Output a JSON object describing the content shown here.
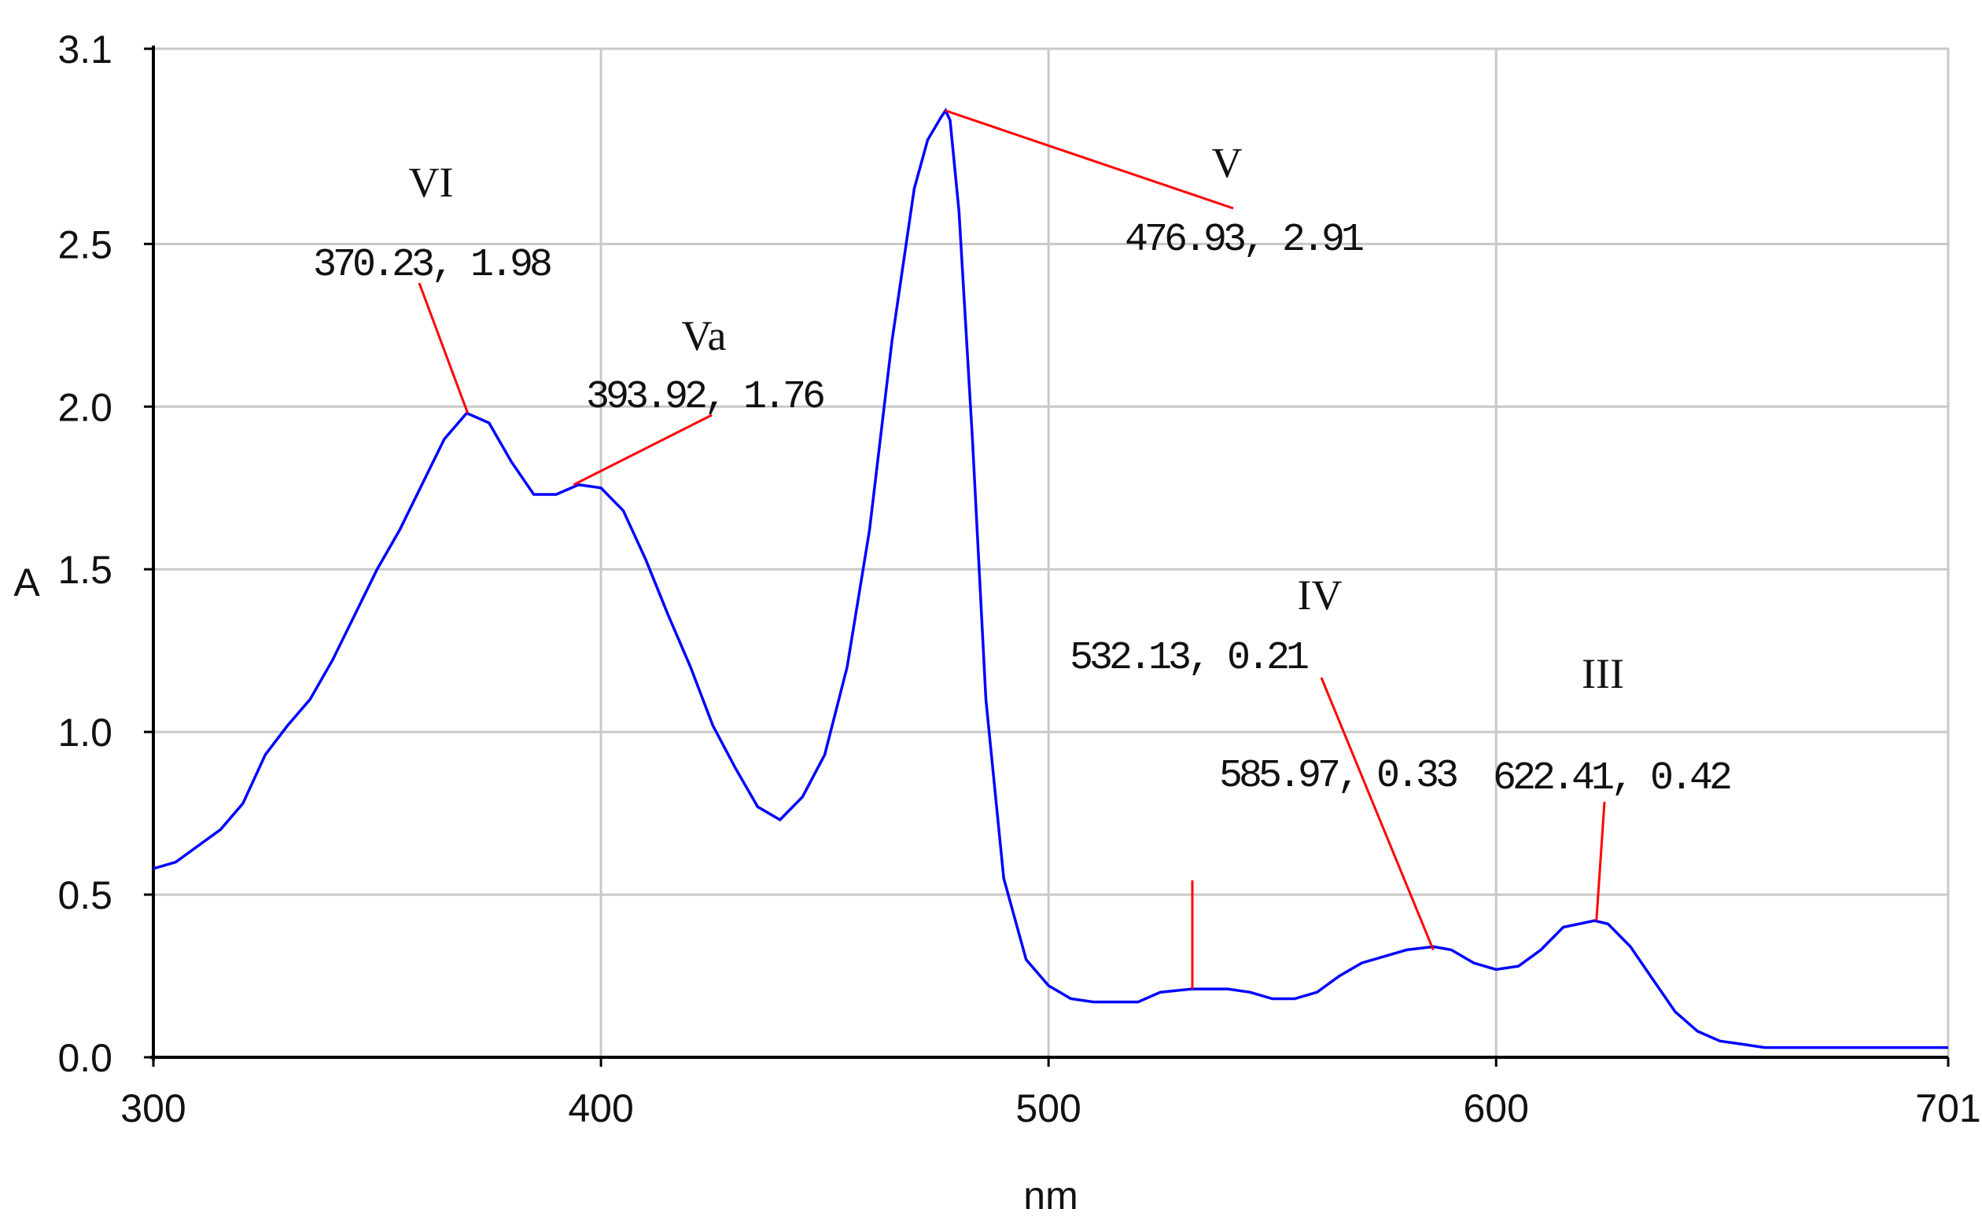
{
  "chart_data": {
    "type": "line",
    "xlabel": "nm",
    "ylabel": "A",
    "xlim": [
      300,
      701
    ],
    "ylim": [
      0.0,
      3.1
    ],
    "x_ticks": [
      "300",
      "400",
      "500",
      "600",
      "701"
    ],
    "y_ticks": [
      "0.0",
      "0.5",
      "1.0",
      "1.5",
      "2.0",
      "2.5",
      "3.1"
    ],
    "grid": true,
    "line_color": "#0000ff",
    "annotation_color": "#ff0000",
    "series": [
      {
        "x": [
          300,
          305,
          310,
          315,
          320,
          325,
          330,
          335,
          340,
          345,
          350,
          355,
          360,
          365,
          370,
          375,
          380,
          385,
          390,
          395,
          400,
          405,
          410,
          415,
          420,
          425,
          430,
          435,
          440,
          445,
          450,
          455,
          460,
          465,
          470,
          473,
          476,
          477,
          478,
          480,
          483,
          486,
          490,
          495,
          500,
          505,
          510,
          515,
          520,
          525,
          532,
          540,
          545,
          550,
          555,
          560,
          565,
          570,
          575,
          580,
          586,
          590,
          595,
          600,
          605,
          610,
          615,
          622,
          625,
          630,
          635,
          640,
          645,
          650,
          655,
          660,
          670,
          680,
          690,
          701
        ],
        "y": [
          0.58,
          0.6,
          0.65,
          0.7,
          0.78,
          0.93,
          1.02,
          1.1,
          1.22,
          1.36,
          1.5,
          1.62,
          1.76,
          1.9,
          1.98,
          1.95,
          1.83,
          1.73,
          1.73,
          1.76,
          1.75,
          1.68,
          1.53,
          1.36,
          1.2,
          1.02,
          0.89,
          0.77,
          0.73,
          0.8,
          0.93,
          1.2,
          1.62,
          2.2,
          2.67,
          2.82,
          2.89,
          2.91,
          2.88,
          2.6,
          1.9,
          1.1,
          0.55,
          0.3,
          0.22,
          0.18,
          0.17,
          0.17,
          0.17,
          0.2,
          0.21,
          0.21,
          0.2,
          0.18,
          0.18,
          0.2,
          0.25,
          0.29,
          0.31,
          0.33,
          0.34,
          0.33,
          0.29,
          0.27,
          0.28,
          0.33,
          0.4,
          0.42,
          0.41,
          0.34,
          0.24,
          0.14,
          0.08,
          0.05,
          0.04,
          0.03,
          0.03,
          0.03,
          0.03,
          0.03
        ]
      }
    ],
    "annotations": [
      {
        "label": "VI",
        "value": "370.23, 1.98",
        "x": 370.23,
        "y": 1.98
      },
      {
        "label": "Va",
        "value": "393.92, 1.76",
        "x": 393.92,
        "y": 1.76
      },
      {
        "label": "V",
        "value": "476.93, 2.91",
        "x": 476.93,
        "y": 2.91
      },
      {
        "label": "",
        "value": "532.13, 0.21",
        "x": 532.13,
        "y": 0.21
      },
      {
        "label": "IV",
        "value": "585.97, 0.33",
        "x": 585.97,
        "y": 0.33
      },
      {
        "label": "III",
        "value": "622.41, 0.42",
        "x": 622.41,
        "y": 0.42
      }
    ]
  }
}
